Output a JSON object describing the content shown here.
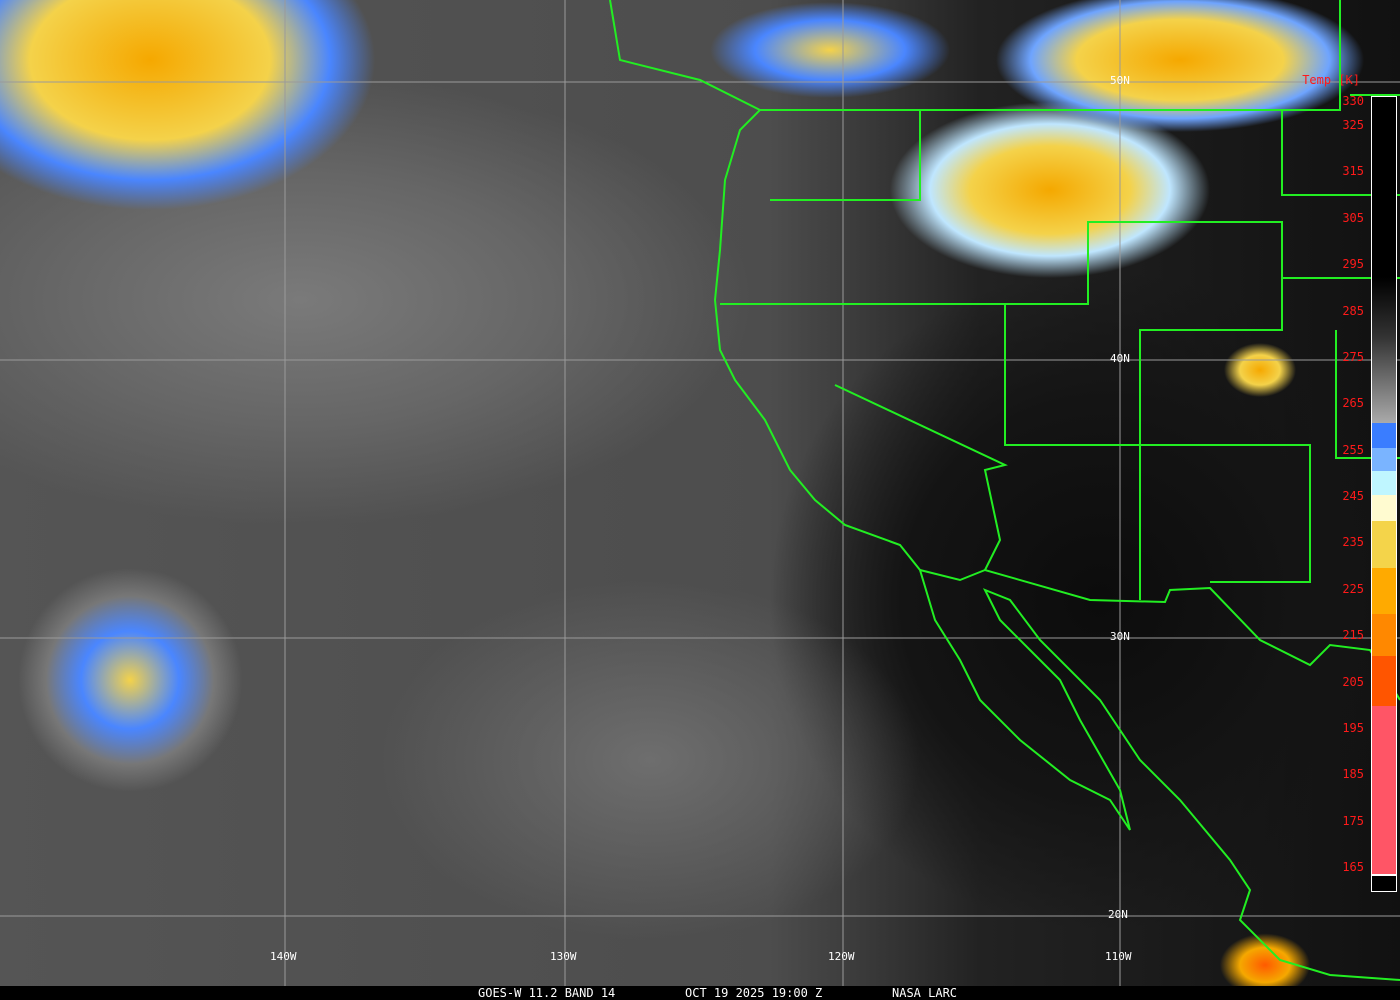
{
  "caption": {
    "satellite": "GOES-W 11.2 BAND 14",
    "datetime": "OCT 19 2025 19:00 Z",
    "source": "NASA LARC"
  },
  "legend": {
    "title": "Temp [K]",
    "ticks": [
      "330",
      "325",
      "315",
      "305",
      "295",
      "285",
      "275",
      "265",
      "255",
      "245",
      "235",
      "225",
      "215",
      "205",
      "195",
      "185",
      "175",
      "165"
    ],
    "colors": {
      "warm": "#000000",
      "cool": "#aaaaaa",
      "blue": "#3a7dff",
      "light_blue": "#7ab4ff",
      "cyan": "#bff6ff",
      "pale_yellow": "#fffbd0",
      "yellow": "#f4d44a",
      "orange": "#ffaa00",
      "dark_orange": "#ff8800",
      "red_orange": "#ff5500",
      "pink": "#ff5566"
    }
  },
  "grid": {
    "lat_labels": [
      "50N",
      "40N",
      "30N",
      "20N"
    ],
    "lon_labels": [
      "140W",
      "130W",
      "120W",
      "110W"
    ]
  },
  "colors": {
    "borders": "#22ee22",
    "gridlines": "#9a9a9a",
    "legend_text": "#ff1a1a"
  }
}
